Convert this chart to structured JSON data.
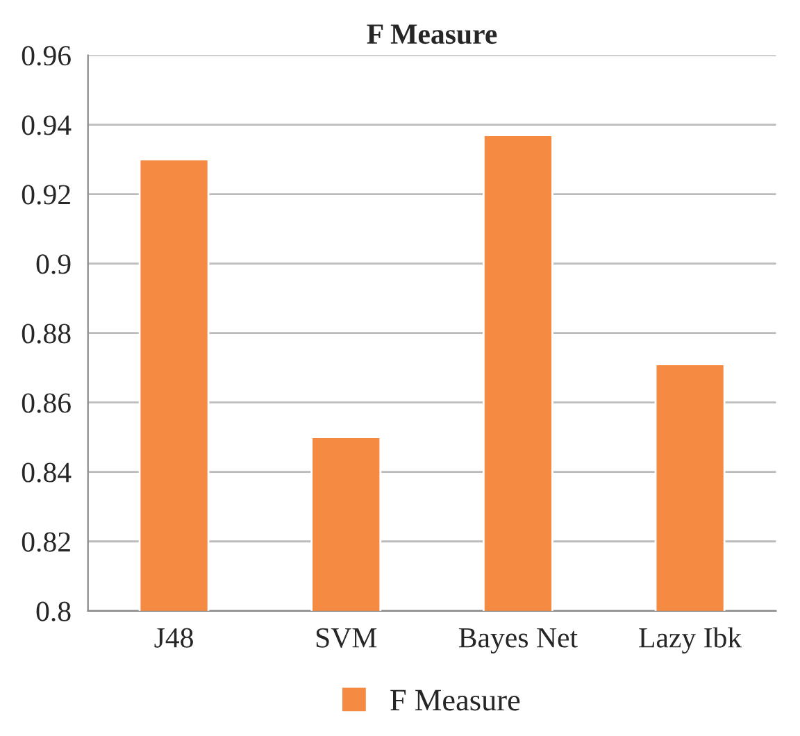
{
  "chart_data": {
    "type": "bar",
    "title": "F Measure",
    "categories": [
      "J48",
      "SVM",
      "Bayes Net",
      "Lazy Ibk"
    ],
    "series": [
      {
        "name": "F Measure",
        "color": "#f58b42",
        "values": [
          0.93,
          0.85,
          0.937,
          0.871
        ]
      }
    ],
    "ylim": [
      0.8,
      0.96
    ],
    "yticks": [
      {
        "value": 0.8,
        "label": "0.8"
      },
      0.82,
      0.84,
      0.86,
      0.88,
      {
        "value": 0.9,
        "label": "0.9"
      },
      0.92,
      0.94,
      0.96
    ],
    "grid": "y",
    "legend": "bottom"
  }
}
